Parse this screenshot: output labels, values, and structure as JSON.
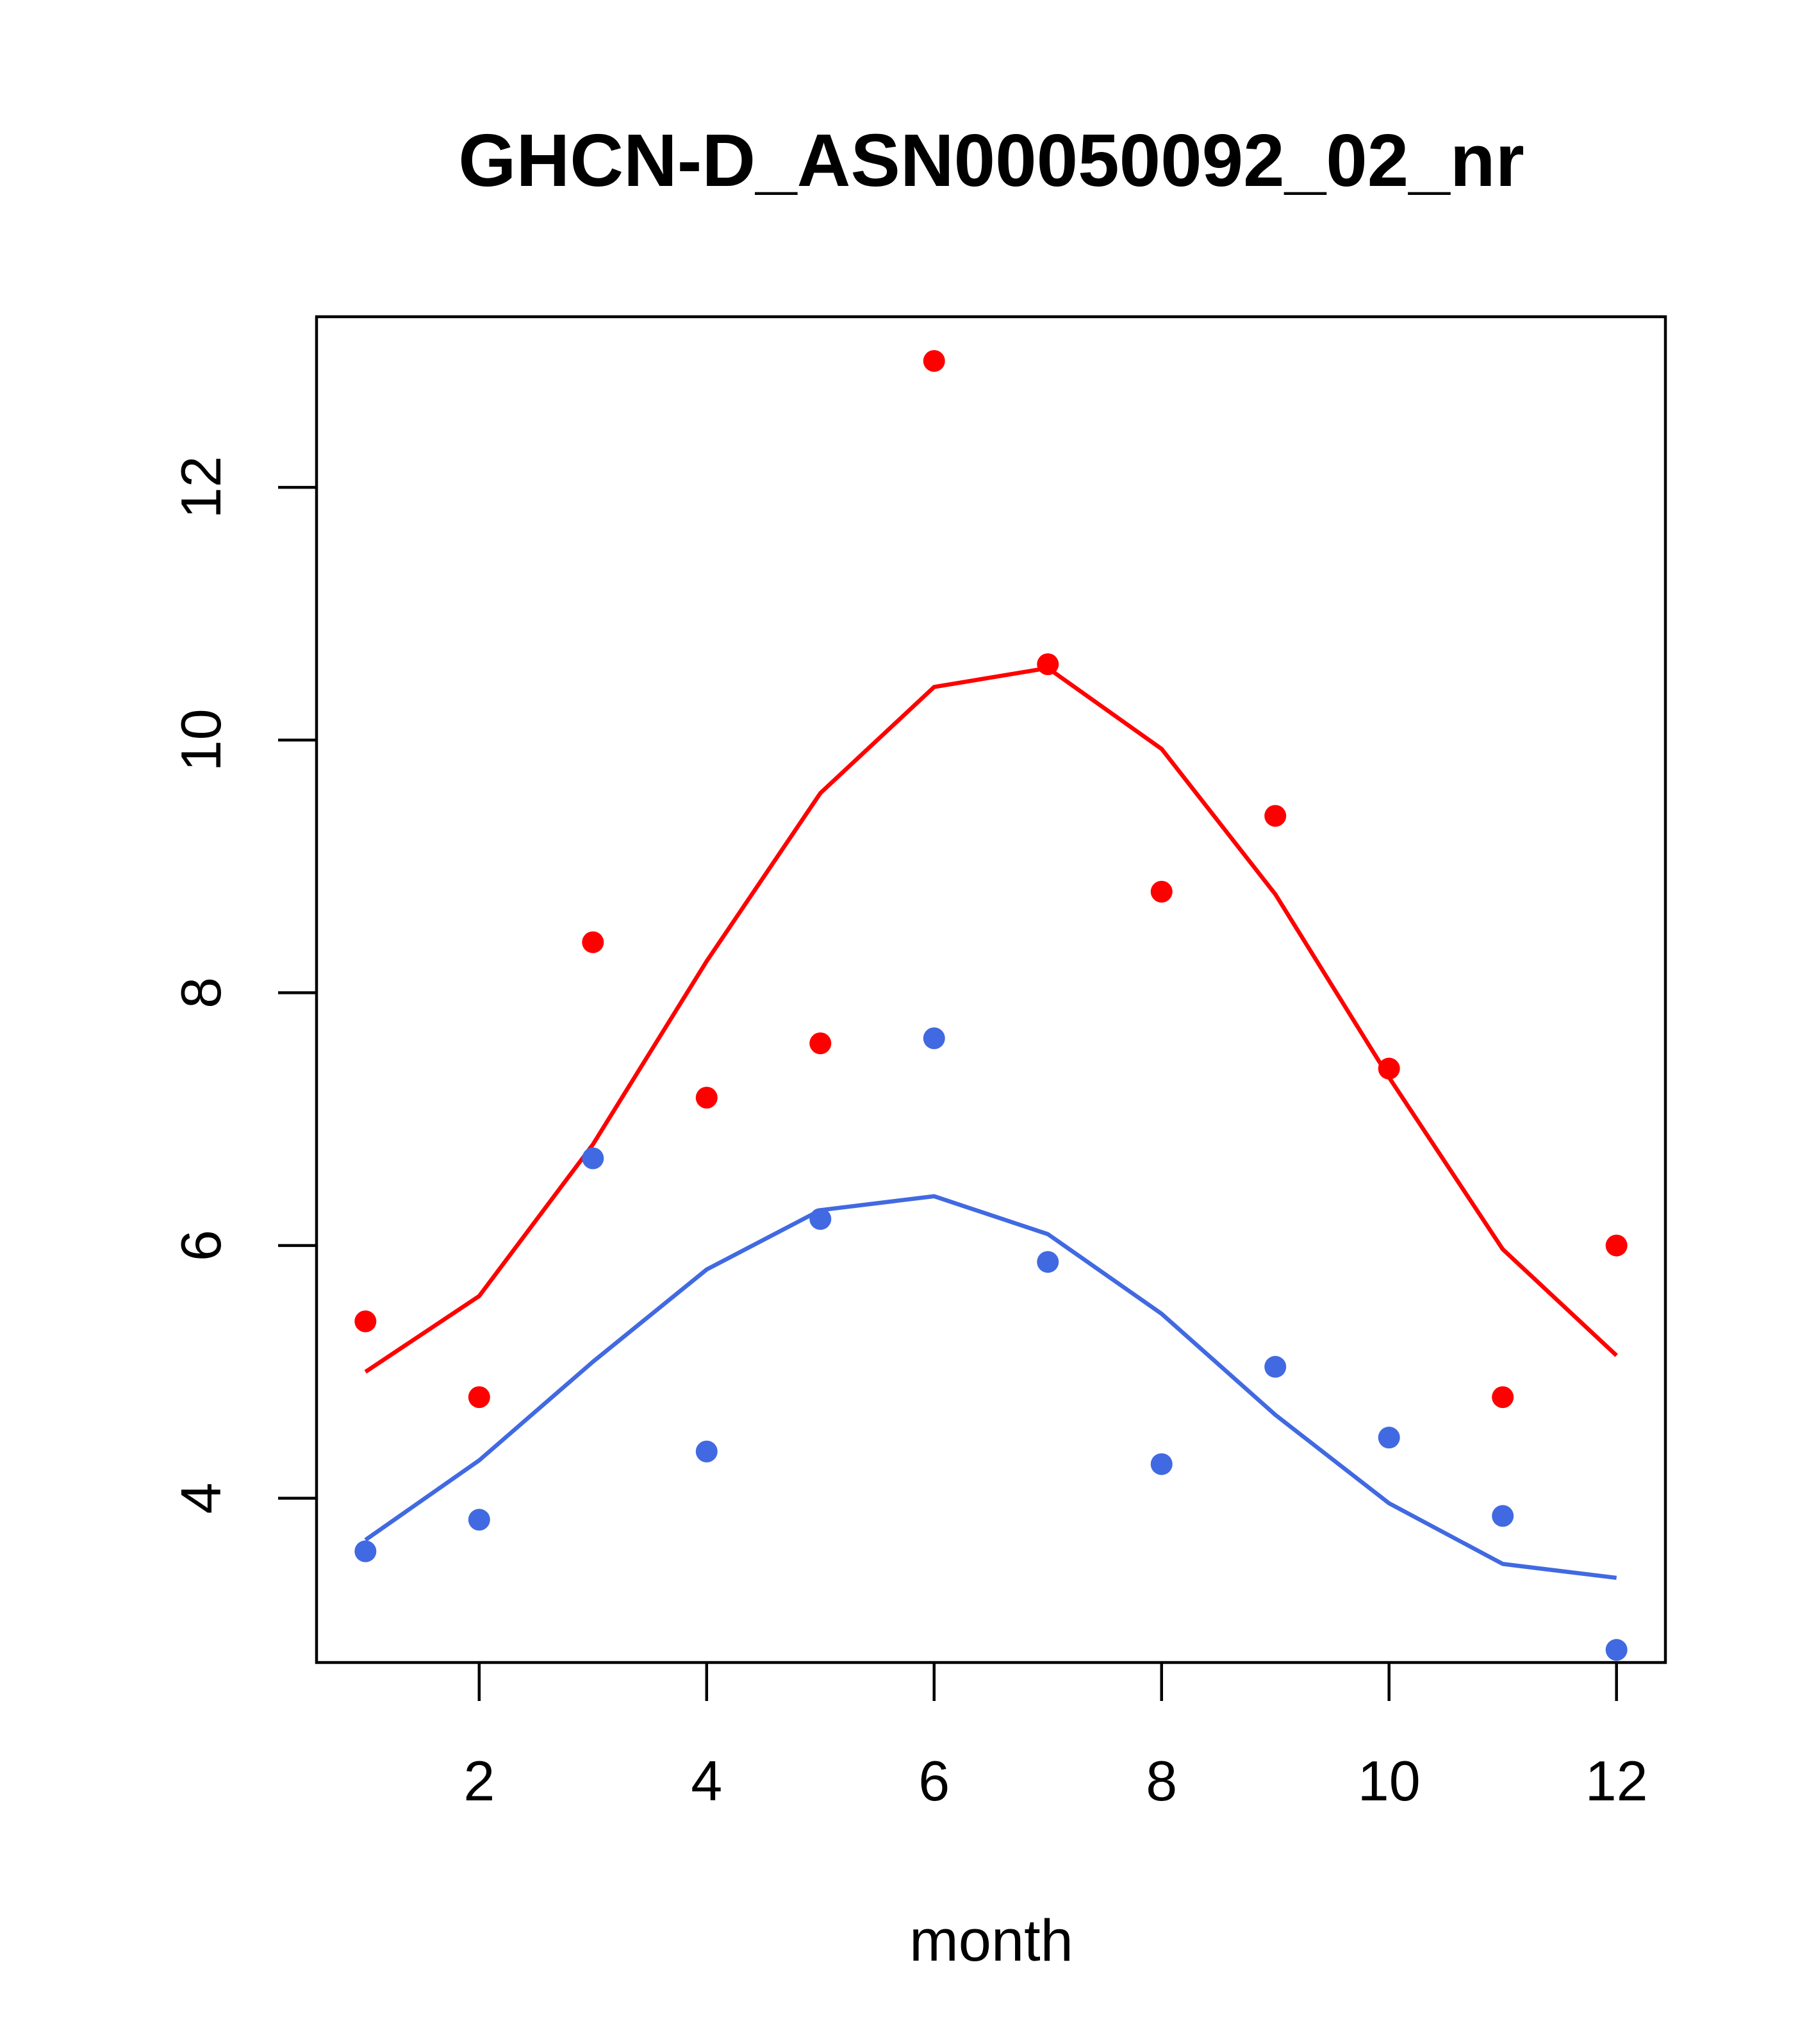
{
  "chart_data": {
    "type": "scatter",
    "title": "GHCN-D_ASN00050092_02_nr",
    "xlabel": "month",
    "ylabel": "",
    "xlim": [
      0.57,
      12.43
    ],
    "ylim": [
      2.7,
      13.35
    ],
    "xticks": [
      2,
      4,
      6,
      8,
      10,
      12
    ],
    "yticks": [
      4,
      6,
      8,
      10,
      12
    ],
    "grid": false,
    "colors": {
      "red": "#ff0000",
      "blue": "#4169e1"
    },
    "series": [
      {
        "kind": "points",
        "color": "#ff0000",
        "x": [
          1,
          2,
          3,
          4,
          5,
          6,
          7,
          8,
          9,
          10,
          11,
          12
        ],
        "y": [
          5.4,
          4.8,
          8.4,
          7.17,
          7.6,
          13.0,
          10.6,
          8.8,
          9.4,
          7.4,
          4.8,
          6.0
        ]
      },
      {
        "kind": "line",
        "color": "#ff0000",
        "x": [
          1,
          2,
          3,
          4,
          5,
          6,
          7,
          8,
          9,
          10,
          11,
          12
        ],
        "y": [
          5.0,
          5.6,
          6.8,
          8.25,
          9.58,
          10.42,
          10.57,
          9.93,
          8.78,
          7.33,
          5.97,
          5.13
        ]
      },
      {
        "kind": "points",
        "color": "#4169e1",
        "x": [
          1,
          2,
          3,
          4,
          5,
          6,
          7,
          8,
          9,
          10,
          11,
          12
        ],
        "y": [
          3.58,
          3.83,
          6.69,
          4.37,
          6.21,
          7.64,
          5.87,
          4.27,
          5.04,
          4.48,
          3.86,
          2.8
        ]
      },
      {
        "kind": "line",
        "color": "#4169e1",
        "x": [
          1,
          2,
          3,
          4,
          5,
          6,
          7,
          8,
          9,
          10,
          11,
          12
        ],
        "y": [
          3.67,
          4.3,
          5.08,
          5.81,
          6.28,
          6.39,
          6.09,
          5.46,
          4.66,
          3.96,
          3.48,
          3.37
        ]
      }
    ]
  }
}
